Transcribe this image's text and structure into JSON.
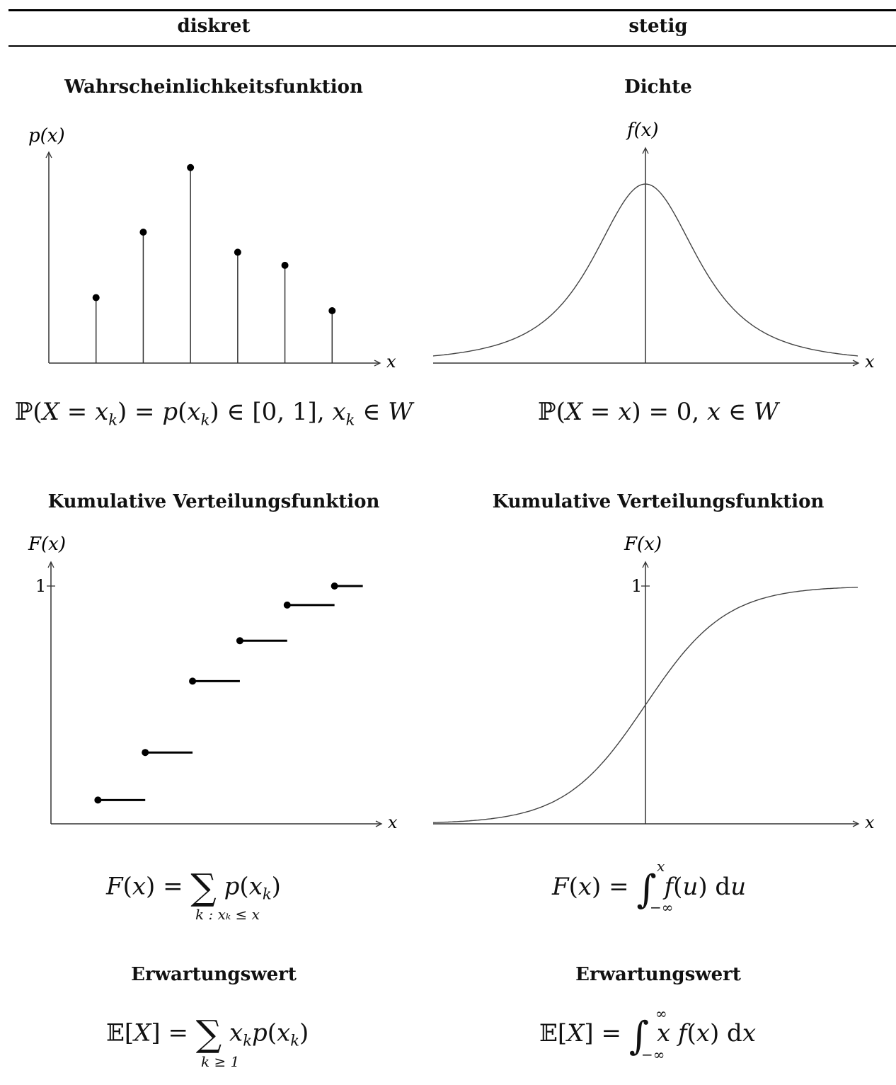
{
  "table": {
    "col_left": "diskret",
    "col_right": "stetig"
  },
  "sections": {
    "pmf_title": "Wahrscheinlichkeitsfunktion",
    "pdf_title": "Dichte",
    "cdf_left_title": "Kumulative Verteilungsfunktion",
    "cdf_right_title": "Kumulative Verteilungsfunktion",
    "exp_left_title": "Erwartungswert",
    "exp_right_title": "Erwartungswert"
  },
  "axes": {
    "pmf_y": "p(x)",
    "pdf_y": "f(x)",
    "cdf_y": "F(x)",
    "x": "x",
    "tick_one": "1"
  },
  "chart_data": [
    {
      "type": "scatter",
      "name": "pmf",
      "x": [
        1,
        2,
        3,
        4,
        5,
        6
      ],
      "values": [
        0.75,
        1.5,
        2.24,
        1.27,
        1.12,
        0.6
      ],
      "xlim": [
        0,
        7
      ],
      "ylim": [
        0,
        2.7
      ]
    },
    {
      "type": "line",
      "name": "pdf",
      "x": [
        -3,
        -2,
        -1,
        0,
        1,
        2,
        3
      ],
      "values": [
        0.04,
        0.24,
        0.6,
        1.0,
        0.6,
        0.24,
        0.04
      ],
      "xlim": [
        -3,
        3
      ],
      "ylim": [
        0,
        1.2
      ]
    },
    {
      "type": "line",
      "name": "cdf_discrete",
      "x": [
        1,
        2,
        3,
        4,
        5,
        6,
        7
      ],
      "values": [
        0.1,
        0.3,
        0.6,
        0.77,
        0.92,
        1.0,
        1.0
      ],
      "xlim": [
        0,
        7
      ],
      "ylim": [
        0,
        1.1
      ]
    },
    {
      "type": "line",
      "name": "cdf_continuous",
      "x": [
        -3,
        -2,
        -1,
        0,
        1,
        2,
        3
      ],
      "values": [
        0.01,
        0.08,
        0.27,
        0.5,
        0.73,
        0.92,
        0.99
      ],
      "xlim": [
        -3,
        3
      ],
      "ylim": [
        0,
        1.1
      ]
    }
  ],
  "formulas": {
    "pmf": "ℙ(X = xₖ) = p(xₖ) ∈ [0, 1], xₖ ∈ W",
    "pdf": "ℙ(X = x) = 0, x ∈ W",
    "cdf_discrete": "F(x) = Σ_{k : xₖ ≤ x} p(xₖ)",
    "cdf_continuous": "F(x) = ∫_{−∞}^{x} f(u) du",
    "exp_discrete": "𝔼[X] = Σ_{k≥1} xₖ p(xₖ)",
    "exp_continuous": "𝔼[X] = ∫_{−∞}^{∞} x f(x) dx"
  },
  "formula_parts": {
    "sum_under_cdf": "k : xₖ ≤ x",
    "sum_under_exp": "k ≥ 1",
    "int_lower": "−∞",
    "int_upper_x": "x",
    "int_upper_inf": "∞"
  }
}
